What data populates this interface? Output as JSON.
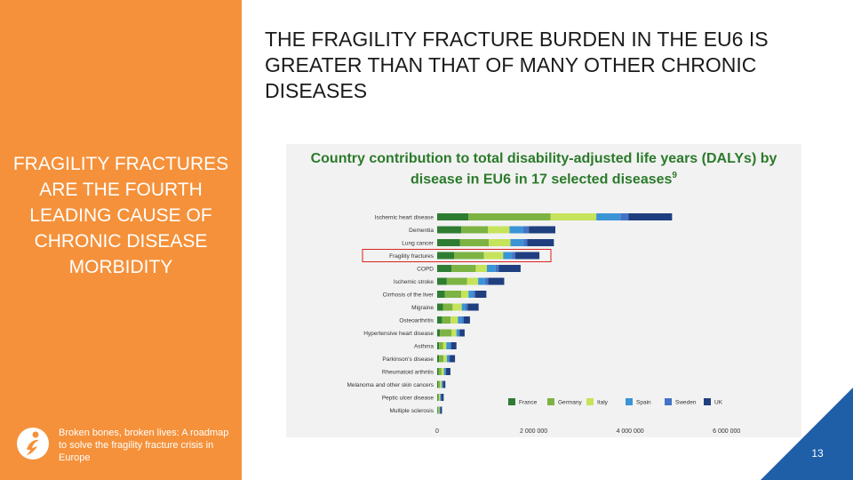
{
  "slide": {
    "title": "THE FRAGILITY FRACTURE BURDEN IN THE EU6 IS GREATER THAN THAT OF MANY OTHER CHRONIC DISEASES",
    "left_headline": "FRAGILITY FRACTURES ARE THE FOURTH LEADING CAUSE OF CHRONIC DISEASE MORBIDITY",
    "source": "Broken bones, broken lives: A roadmap to solve the fragility fracture crisis in Europe",
    "page_number": "13",
    "colors": {
      "accent_orange": "#f5913a",
      "corner_blue": "#1f5fa8",
      "title_green": "#2b7a2b",
      "highlight_red": "#d9231f"
    },
    "logo_icon": "person-logo-icon"
  },
  "chart_data": {
    "type": "bar",
    "orientation": "horizontal",
    "stacked": true,
    "title": "Country contribution to total disability-adjusted life years (DALYs) by disease in EU6 in 17 selected diseases",
    "title_superscript": "9",
    "categories": [
      "Ischemic heart disease",
      "Dementia",
      "Lung cancer",
      "Fragility fractures",
      "COPD",
      "Ischemic stroke",
      "Cirrhosis of the liver",
      "Migraine",
      "Osteoarthritis",
      "Hypertensive heart disease",
      "Asthma",
      "Parkinson's disease",
      "Rheumatoid arthritis",
      "Melanoma and other skin cancers",
      "Peptic ulcer disease",
      "Multiple sclerosis"
    ],
    "highlighted_category": "Fragility fractures",
    "series": [
      {
        "name": "France",
        "color": "#2e7d32",
        "values": [
          650000,
          500000,
          470000,
          350000,
          300000,
          200000,
          160000,
          120000,
          100000,
          60000,
          40000,
          40000,
          30000,
          20000,
          15000,
          12000
        ]
      },
      {
        "name": "Germany",
        "color": "#7cb342",
        "values": [
          1700000,
          550000,
          600000,
          620000,
          500000,
          420000,
          340000,
          200000,
          180000,
          240000,
          80000,
          90000,
          60000,
          40000,
          25000,
          20000
        ]
      },
      {
        "name": "Italy",
        "color": "#c5e35b",
        "values": [
          950000,
          450000,
          450000,
          400000,
          230000,
          230000,
          150000,
          190000,
          150000,
          100000,
          70000,
          70000,
          50000,
          30000,
          20000,
          15000
        ]
      },
      {
        "name": "Spain",
        "color": "#3a94d6",
        "values": [
          500000,
          280000,
          270000,
          180000,
          180000,
          140000,
          90000,
          80000,
          80000,
          50000,
          70000,
          40000,
          30000,
          20000,
          15000,
          10000
        ]
      },
      {
        "name": "Sweden",
        "color": "#4472c4",
        "values": [
          170000,
          120000,
          80000,
          70000,
          70000,
          70000,
          50000,
          40000,
          40000,
          20000,
          30000,
          20000,
          15000,
          15000,
          10000,
          8000
        ]
      },
      {
        "name": "UK",
        "color": "#1f3f7f",
        "values": [
          900000,
          550000,
          550000,
          500000,
          450000,
          330000,
          230000,
          230000,
          130000,
          100000,
          110000,
          110000,
          90000,
          45000,
          50000,
          35000
        ]
      }
    ],
    "x_ticks": [
      0,
      2000000,
      4000000,
      6000000
    ],
    "x_tick_labels": [
      "0",
      "2 000 000",
      "4 000 000",
      "6 000 000"
    ],
    "xlim": [
      0,
      7000000
    ],
    "legend_position": "bottom-right",
    "grid": false
  }
}
